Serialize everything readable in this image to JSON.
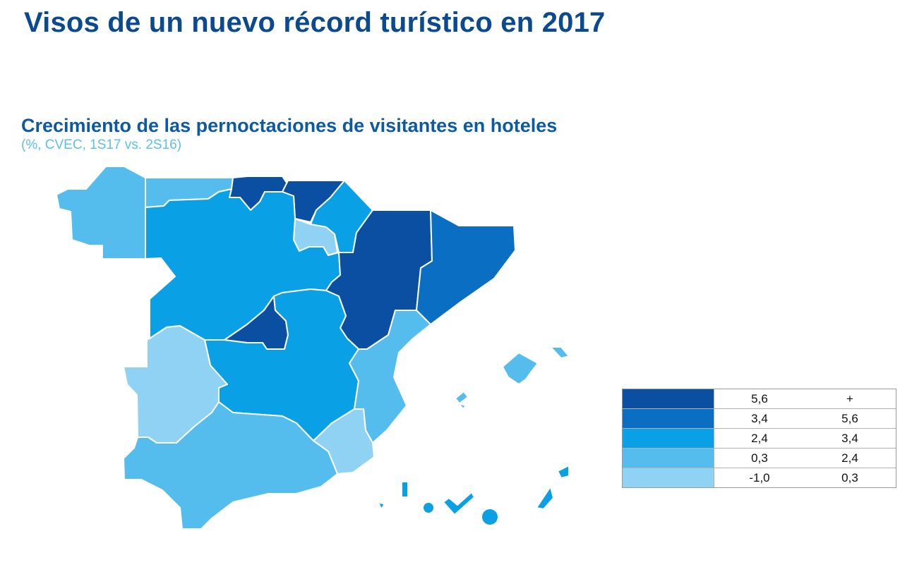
{
  "title": "Visos de un nuevo récord turístico en 2017",
  "subtitle": "Crecimiento de las pernoctaciones de visitantes en hoteles",
  "note": "(%, CVEC, 1S17 vs. 2S16)",
  "colors": {
    "class_1": "#0b4fa3",
    "class_2": "#0a6fc2",
    "class_3": "#0aa0e6",
    "class_4": "#55bdee",
    "class_5": "#8fd2f4"
  },
  "legend": [
    {
      "from": "5,6",
      "to": "+",
      "color": "#0b4fa3"
    },
    {
      "from": "3,4",
      "to": "5,6",
      "color": "#0a6fc2"
    },
    {
      "from": "2,4",
      "to": "3,4",
      "color": "#0aa0e6"
    },
    {
      "from": "0,3",
      "to": "2,4",
      "color": "#55bdee"
    },
    {
      "from": "-1,0",
      "to": "0,3",
      "color": "#8fd2f4"
    }
  ]
}
